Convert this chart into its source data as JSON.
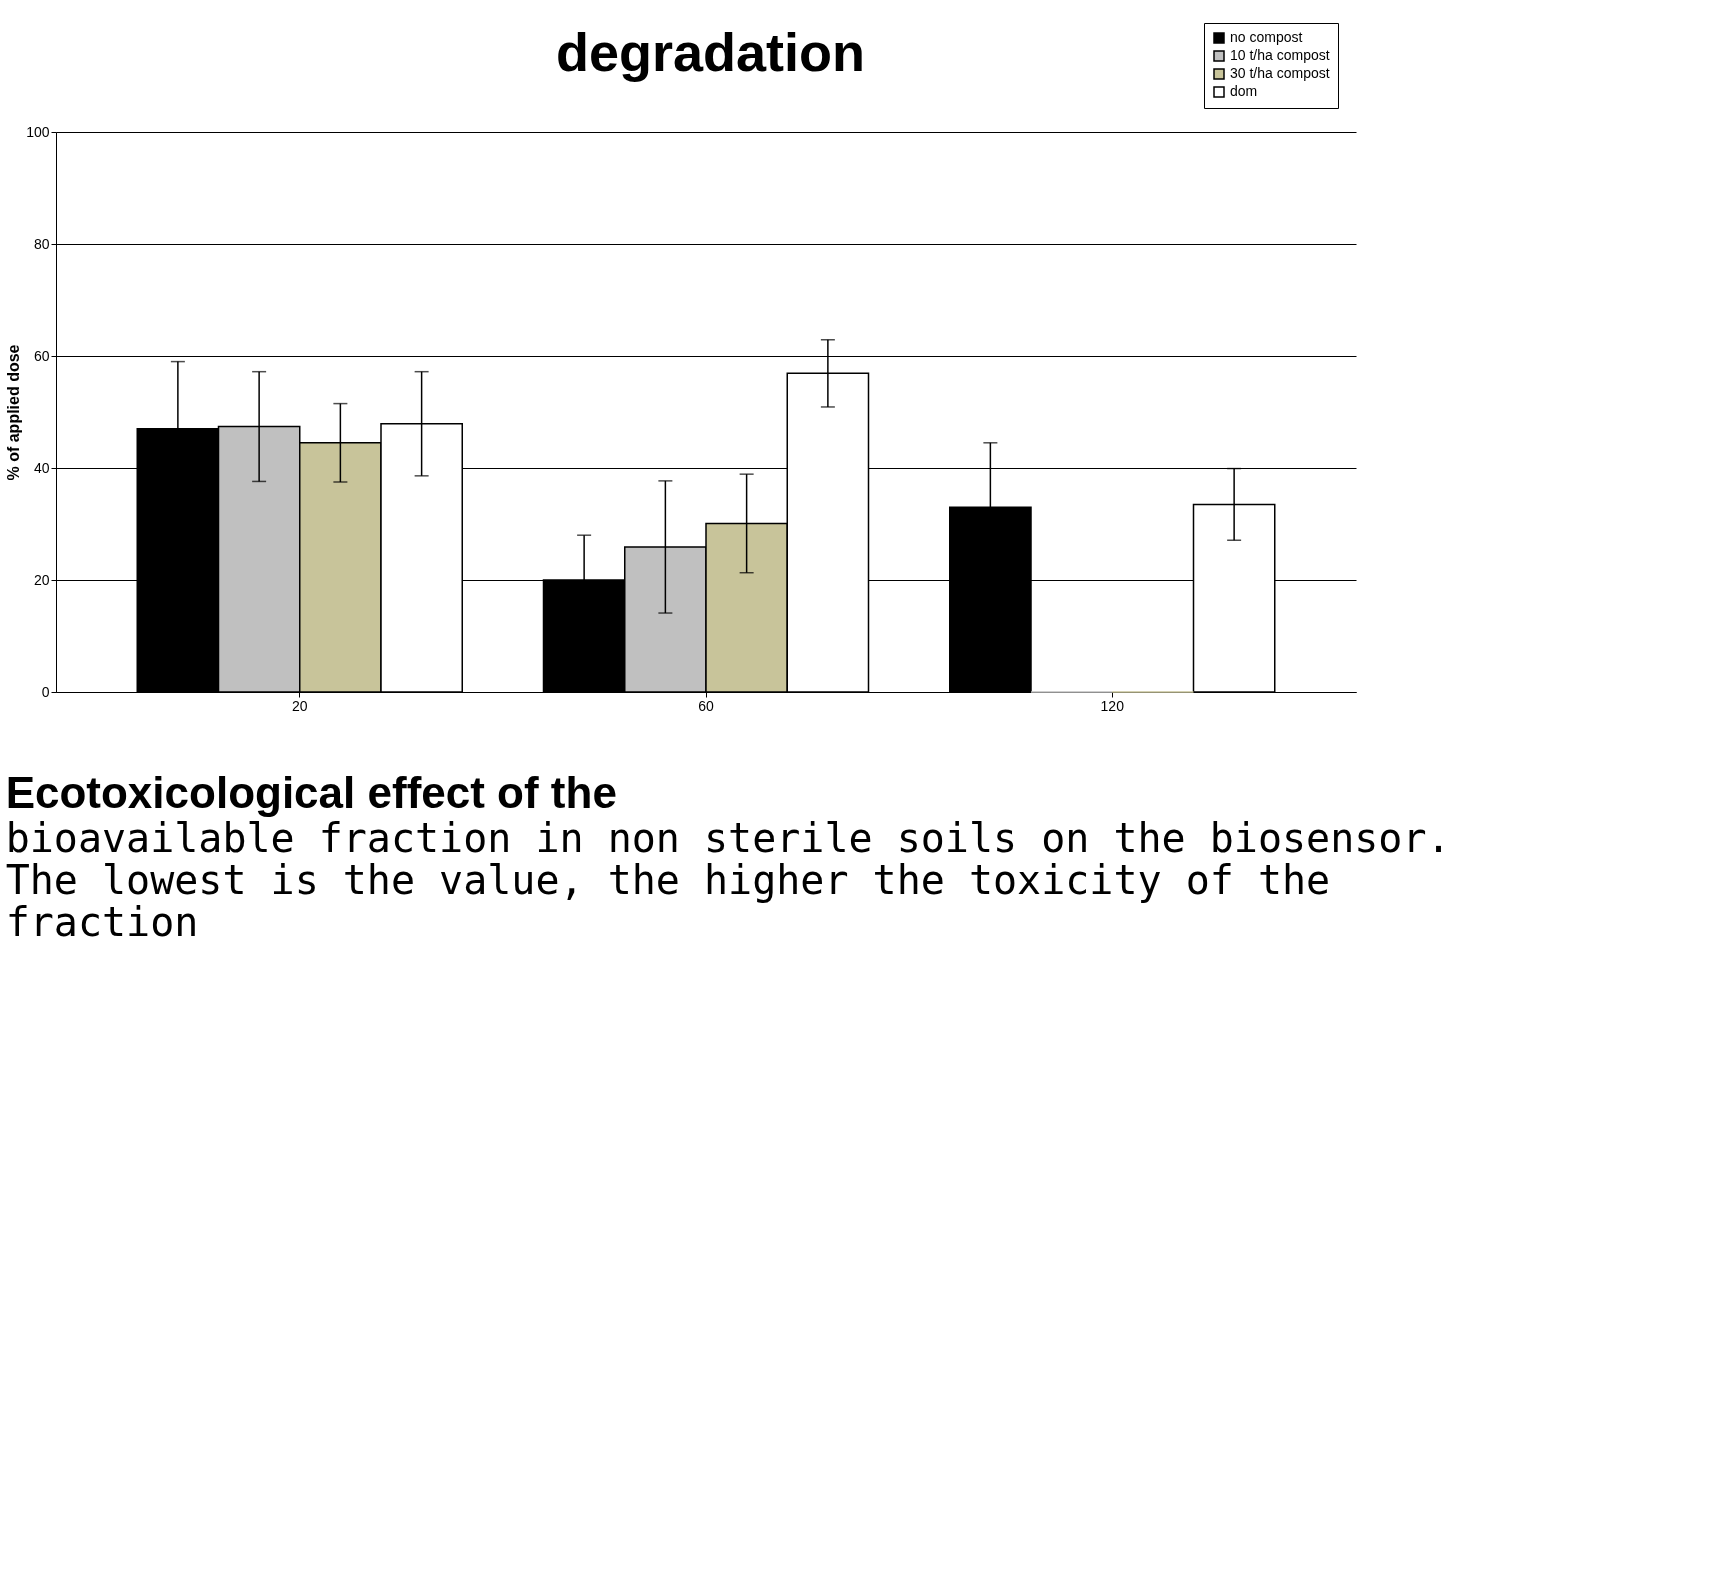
{
  "chart_data": {
    "type": "bar",
    "title": "Ecotoxicological effect of the",
    "subtitle": "bioavailable fraction in non sterile soils on the biosensor. The lowest is the value, the higher the toxicity of the fraction",
    "annotations": [
      "degradation"
    ],
    "ylabel": "% of applied dose",
    "categories": [
      "20",
      "60",
      "120"
    ],
    "ylim": [
      0,
      100
    ],
    "yticks": [
      0,
      20,
      40,
      60,
      80,
      100
    ],
    "grid": "y",
    "legend": "top right",
    "series": [
      {
        "name": "no compost",
        "color": "#000000",
        "values": [
          47,
          20,
          33
        ],
        "errors": [
          12,
          8,
          11.5
        ]
      },
      {
        "name": "10 t/ha compost",
        "color": "#c0c0c0",
        "values": [
          47.4,
          25.9,
          0
        ],
        "errors": [
          9.8,
          11.8,
          null
        ]
      },
      {
        "name": "30 t/ha compost",
        "color": "#c8c49a",
        "values": [
          44.5,
          30.1,
          0
        ],
        "errors": [
          7,
          8.8,
          null
        ]
      },
      {
        "name": "dom",
        "color": "#ffffff",
        "values": [
          47.9,
          56.9,
          33.5
        ],
        "errors": [
          9.3,
          6,
          6.4
        ]
      }
    ]
  }
}
